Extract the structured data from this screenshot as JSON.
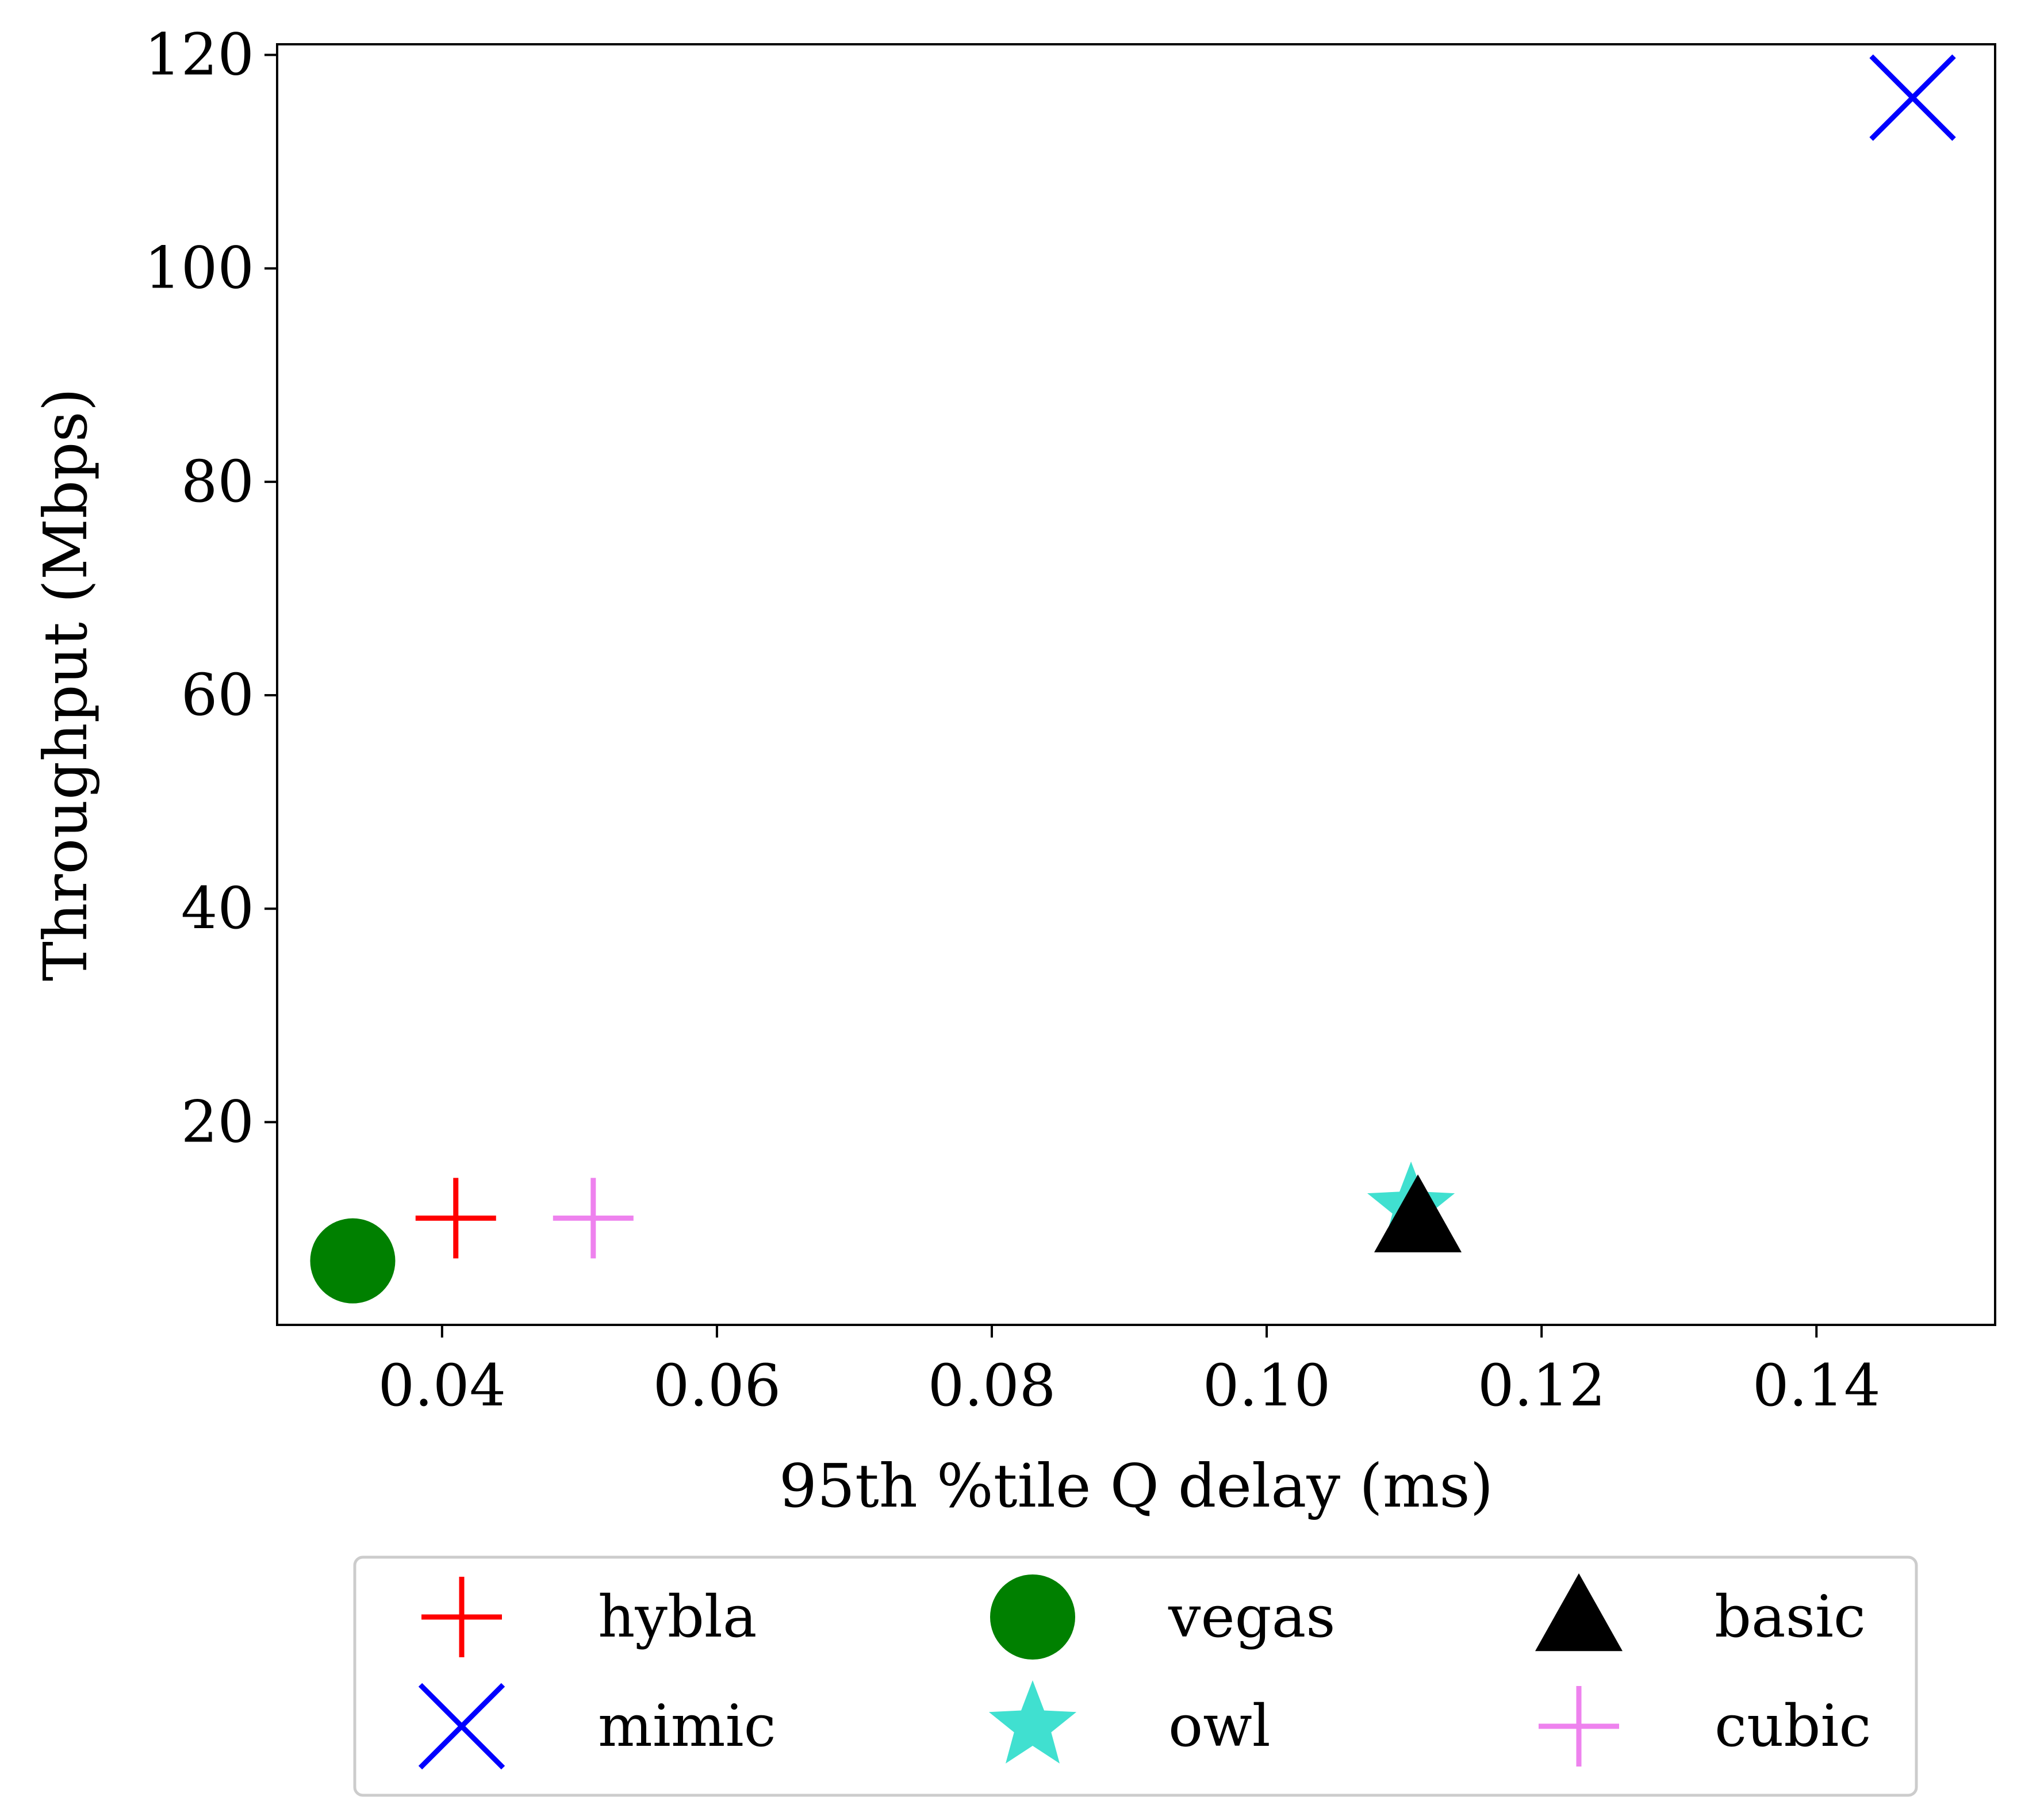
{
  "chart_data": {
    "type": "scatter",
    "title": "",
    "xlabel": "95th %tile Q delay (ms)",
    "ylabel": "Throughput (Mbps)",
    "xlim": [
      0.028,
      0.153
    ],
    "ylim": [
      1,
      121
    ],
    "xticks": [
      0.04,
      0.06,
      0.08,
      0.1,
      0.12,
      0.14
    ],
    "xtick_labels": [
      "0.04",
      "0.06",
      "0.08",
      "0.10",
      "0.12",
      "0.14"
    ],
    "yticks": [
      20,
      40,
      60,
      80,
      100,
      120
    ],
    "ytick_labels": [
      "20",
      "40",
      "60",
      "80",
      "100",
      "120"
    ],
    "grid": false,
    "legend_position": "below-plot",
    "legend_columns": 3,
    "series": [
      {
        "name": "hybla",
        "marker": "plus",
        "color": "#ff0000",
        "x": 0.041,
        "y": 11
      },
      {
        "name": "mimic",
        "marker": "x",
        "color": "#0000ff",
        "x": 0.147,
        "y": 116
      },
      {
        "name": "vegas",
        "marker": "circle",
        "color": "#008000",
        "x": 0.0335,
        "y": 7
      },
      {
        "name": "owl",
        "marker": "star",
        "color": "#40e0d0",
        "x": 0.1105,
        "y": 12
      },
      {
        "name": "basic",
        "marker": "triangle",
        "color": "#000000",
        "x": 0.111,
        "y": 11
      },
      {
        "name": "cubic",
        "marker": "plus",
        "color": "#ee82ee",
        "x": 0.051,
        "y": 11
      }
    ]
  }
}
